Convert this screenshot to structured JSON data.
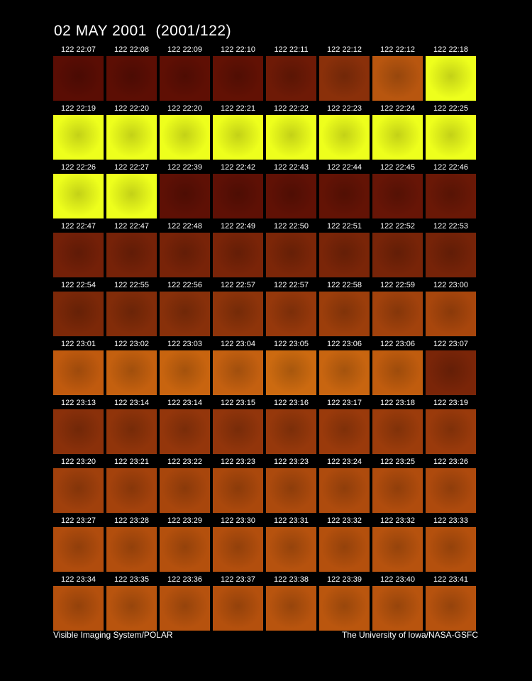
{
  "title": "02 MAY 2001  (2001/122)",
  "rows": [
    [
      {
        "label": "122 22:07",
        "color": "#5a0d04"
      },
      {
        "label": "122 22:08",
        "color": "#5c0e04"
      },
      {
        "label": "122 22:09",
        "color": "#5f0f04"
      },
      {
        "label": "122 22:10",
        "color": "#621104"
      },
      {
        "label": "122 22:11",
        "color": "#6e1a06"
      },
      {
        "label": "122 22:12",
        "color": "#8a300a"
      },
      {
        "label": "122 22:12",
        "color": "#b8560f"
      },
      {
        "label": "122 22:18",
        "color": "#eeff1c"
      }
    ],
    [
      {
        "label": "122 22:19",
        "color": "#eeff1c"
      },
      {
        "label": "122 22:20",
        "color": "#eeff1c"
      },
      {
        "label": "122 22:20",
        "color": "#eeff1c"
      },
      {
        "label": "122 22:21",
        "color": "#eeff1c"
      },
      {
        "label": "122 22:22",
        "color": "#eeff1c"
      },
      {
        "label": "122 22:23",
        "color": "#eeff1c"
      },
      {
        "label": "122 22:24",
        "color": "#eeff1c"
      },
      {
        "label": "122 22:25",
        "color": "#eeff1c"
      }
    ],
    [
      {
        "label": "122 22:26",
        "color": "#eeff1c"
      },
      {
        "label": "122 22:27",
        "color": "#eeff1c"
      },
      {
        "label": "122 22:39",
        "color": "#5e1005"
      },
      {
        "label": "122 22:42",
        "color": "#5e1005"
      },
      {
        "label": "122 22:43",
        "color": "#601105"
      },
      {
        "label": "122 22:44",
        "color": "#631305"
      },
      {
        "label": "122 22:45",
        "color": "#671506"
      },
      {
        "label": "122 22:46",
        "color": "#6a1806"
      }
    ],
    [
      {
        "label": "122 22:47",
        "color": "#742008"
      },
      {
        "label": "122 22:47",
        "color": "#762208"
      },
      {
        "label": "122 22:48",
        "color": "#782308"
      },
      {
        "label": "122 22:49",
        "color": "#7a2408"
      },
      {
        "label": "122 22:50",
        "color": "#7c2608"
      },
      {
        "label": "122 22:51",
        "color": "#7a2508"
      },
      {
        "label": "122 22:52",
        "color": "#782408"
      },
      {
        "label": "122 22:53",
        "color": "#762308"
      }
    ],
    [
      {
        "label": "122 22:54",
        "color": "#7c2808"
      },
      {
        "label": "122 22:55",
        "color": "#822c09"
      },
      {
        "label": "122 22:56",
        "color": "#88300a"
      },
      {
        "label": "122 22:57",
        "color": "#8e340a"
      },
      {
        "label": "122 22:57",
        "color": "#96380b"
      },
      {
        "label": "122 22:58",
        "color": "#9c3e0b"
      },
      {
        "label": "122 22:59",
        "color": "#a2420c"
      },
      {
        "label": "122 23:00",
        "color": "#a8460c"
      }
    ],
    [
      {
        "label": "122 23:01",
        "color": "#c05a0e"
      },
      {
        "label": "122 23:02",
        "color": "#c4600f"
      },
      {
        "label": "122 23:03",
        "color": "#c8640f"
      },
      {
        "label": "122 23:04",
        "color": "#c46010"
      },
      {
        "label": "122 23:05",
        "color": "#cc6a10"
      },
      {
        "label": "122 23:06",
        "color": "#c86510"
      },
      {
        "label": "122 23:06",
        "color": "#c05c0e"
      },
      {
        "label": "122 23:07",
        "color": "#7a2508"
      }
    ],
    [
      {
        "label": "122 23:13",
        "color": "#8a300a"
      },
      {
        "label": "122 23:14",
        "color": "#90340a"
      },
      {
        "label": "122 23:14",
        "color": "#94360b"
      },
      {
        "label": "122 23:15",
        "color": "#92350b"
      },
      {
        "label": "122 23:16",
        "color": "#96380b"
      },
      {
        "label": "122 23:17",
        "color": "#9a3a0b"
      },
      {
        "label": "122 23:18",
        "color": "#9c3c0b"
      },
      {
        "label": "122 23:19",
        "color": "#9a3a0b"
      }
    ],
    [
      {
        "label": "122 23:20",
        "color": "#a0400c"
      },
      {
        "label": "122 23:21",
        "color": "#a4420c"
      },
      {
        "label": "122 23:22",
        "color": "#a8460c"
      },
      {
        "label": "122 23:23",
        "color": "#aa480c"
      },
      {
        "label": "122 23:23",
        "color": "#ac4a0d"
      },
      {
        "label": "122 23:24",
        "color": "#ae4b0d"
      },
      {
        "label": "122 23:25",
        "color": "#b04c0d"
      },
      {
        "label": "122 23:26",
        "color": "#ae4a0d"
      }
    ],
    [
      {
        "label": "122 23:27",
        "color": "#b04c0d"
      },
      {
        "label": "122 23:28",
        "color": "#b24e0d"
      },
      {
        "label": "122 23:29",
        "color": "#b4500d"
      },
      {
        "label": "122 23:30",
        "color": "#b24e0d"
      },
      {
        "label": "122 23:31",
        "color": "#b6520e"
      },
      {
        "label": "122 23:32",
        "color": "#b4500d"
      },
      {
        "label": "122 23:32",
        "color": "#b6520e"
      },
      {
        "label": "122 23:33",
        "color": "#b4500d"
      }
    ],
    [
      {
        "label": "122 23:34",
        "color": "#b4500d"
      },
      {
        "label": "122 23:35",
        "color": "#b8540e"
      },
      {
        "label": "122 23:36",
        "color": "#b6520e"
      },
      {
        "label": "122 23:37",
        "color": "#b4500d"
      },
      {
        "label": "122 23:38",
        "color": "#b8540e"
      },
      {
        "label": "122 23:39",
        "color": "#ba560e"
      },
      {
        "label": "122 23:40",
        "color": "#b8540e"
      },
      {
        "label": "122 23:41",
        "color": "#b6520e"
      }
    ]
  ],
  "footer": {
    "left": "Visible Imaging System/POLAR",
    "right": "The University of Iowa/NASA-GSFC"
  }
}
